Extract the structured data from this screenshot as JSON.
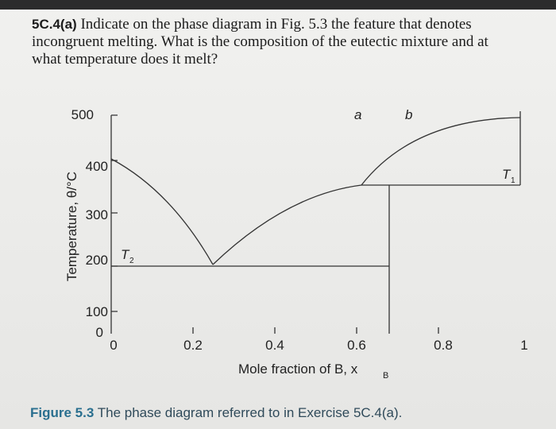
{
  "question": {
    "number": "5C.4(a)",
    "lines": [
      "Indicate on the phase diagram in Fig. 5.3 the feature that denotes",
      "incongruent melting. What is the composition of the eutectic mixture and at",
      "what temperature does it melt?"
    ]
  },
  "diagram": {
    "y_axis_label": "Temperature, θ/°C",
    "y_tick_labels": [
      "0",
      "100",
      "200",
      "300",
      "400",
      "500"
    ],
    "x_tick_labels": [
      "0",
      "0.2",
      "0.4",
      "0.6",
      "0.8",
      "1"
    ],
    "x_axis_label": {
      "text": "Mole fraction of B, x",
      "subscript": "B"
    },
    "annotations": {
      "a": "a",
      "b": "b",
      "t1": {
        "text": "T",
        "subscript": "1"
      },
      "t2": {
        "text": "T",
        "subscript": "2"
      }
    }
  },
  "caption": {
    "label": "Figure 5.3",
    "text": "The phase diagram referred to in Exercise 5C.4(a)."
  }
}
